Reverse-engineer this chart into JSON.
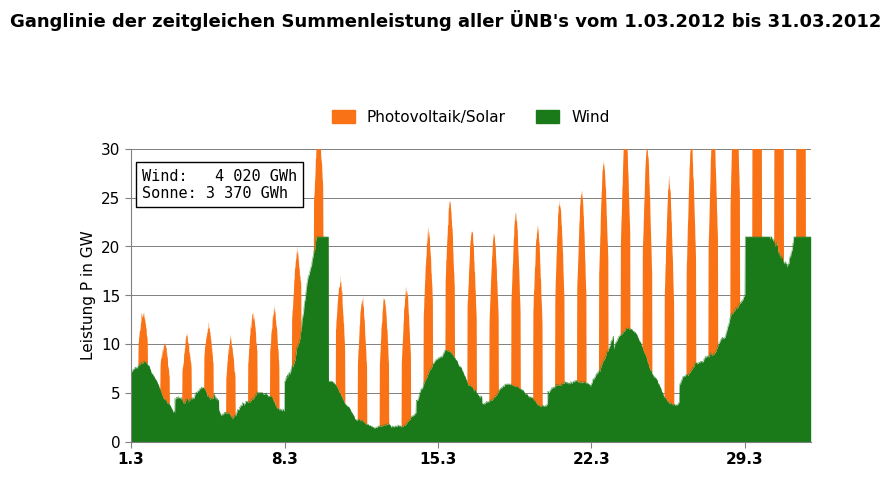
{
  "title": "Ganglinie der zeitgleichen Summenleistung aller ÜNB's vom 1.03.2012 bis 31.03.2012",
  "ylabel": "Leistung P in GW",
  "xlabel": "",
  "xtick_labels": [
    "1.3",
    "8.3",
    "15.3",
    "22.3",
    "29.3"
  ],
  "ytick_values": [
    0,
    5,
    10,
    15,
    20,
    25,
    30
  ],
  "ylim": [
    0,
    30
  ],
  "wind_color": "#1a7a1a",
  "solar_color": "#f97316",
  "wind_label": "Wind",
  "solar_label": "Photovoltaik/Solar",
  "annotation": "Wind:   4 020 GWh\nSonne: 3 370 GWh",
  "bg_color": "#ffffff",
  "plot_bg_color": "#ffffff",
  "title_fontsize": 13,
  "n_days": 31,
  "steps_per_day": 96
}
